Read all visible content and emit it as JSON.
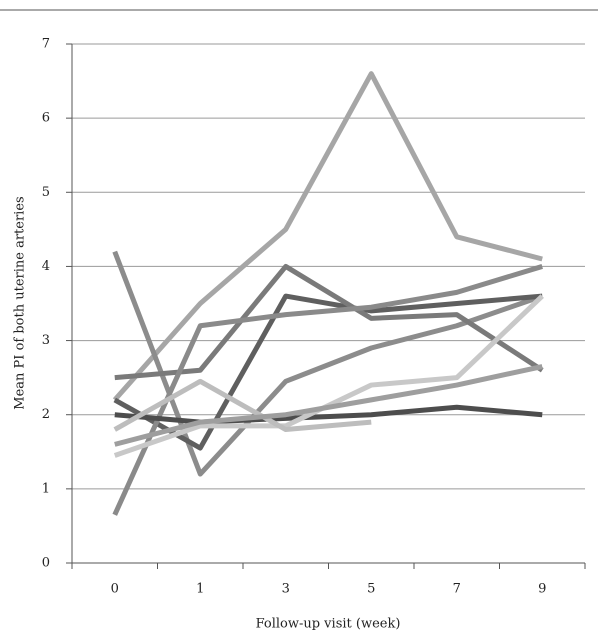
{
  "chart_data": {
    "type": "line",
    "x_label": "Follow-up visit (week)",
    "y_label": "Mean PI  of both uterine arteries",
    "categories": [
      0,
      1,
      3,
      5,
      7,
      9
    ],
    "ylim": [
      0,
      7
    ],
    "yticks": [
      0,
      1,
      2,
      3,
      4,
      5,
      6,
      7
    ],
    "grid": true,
    "series": [
      {
        "color": "#a6a6a6",
        "values": [
          2.2,
          3.5,
          4.5,
          6.6,
          4.4,
          4.1
        ]
      },
      {
        "color": "#8c8c8c",
        "values": [
          4.2,
          1.2,
          2.45,
          2.9,
          3.2,
          3.6
        ]
      },
      {
        "color": "#5f5f5f",
        "values": [
          2.2,
          1.55,
          3.6,
          3.4,
          3.5,
          3.6
        ]
      },
      {
        "color": "#7a7a7a",
        "values": [
          2.5,
          2.6,
          4.0,
          3.3,
          3.35,
          2.6
        ]
      },
      {
        "color": "#8a8a8a",
        "values": [
          0.65,
          3.2,
          3.35,
          3.45,
          3.65,
          4.0
        ]
      },
      {
        "color": "#4d4d4d",
        "values": [
          2.0,
          1.9,
          1.95,
          2.0,
          2.1,
          2.0
        ]
      },
      {
        "color": "#c8c8c8",
        "values": [
          1.45,
          1.85,
          1.85,
          2.4,
          2.5,
          3.6
        ]
      },
      {
        "color": "#bdbdbd",
        "values": [
          1.8,
          2.45,
          1.8,
          1.9,
          null,
          null
        ]
      },
      {
        "color": "#9e9e9e",
        "values": [
          1.6,
          1.9,
          2.0,
          2.2,
          2.4,
          2.65
        ]
      }
    ]
  }
}
